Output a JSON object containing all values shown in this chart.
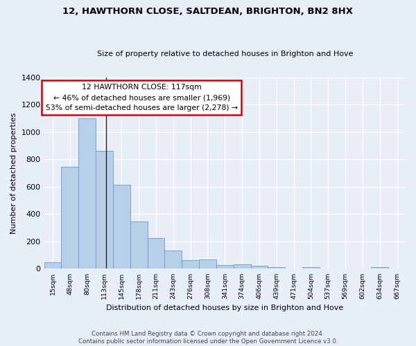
{
  "title": "12, HAWTHORN CLOSE, SALTDEAN, BRIGHTON, BN2 8HX",
  "subtitle": "Size of property relative to detached houses in Brighton and Hove",
  "xlabel": "Distribution of detached houses by size in Brighton and Hove",
  "ylabel": "Number of detached properties",
  "footer_line1": "Contains HM Land Registry data © Crown copyright and database right 2024.",
  "footer_line2": "Contains public sector information licensed under the Open Government Licence v3.0.",
  "bar_labels": [
    "15sqm",
    "48sqm",
    "80sqm",
    "113sqm",
    "145sqm",
    "178sqm",
    "211sqm",
    "243sqm",
    "276sqm",
    "308sqm",
    "341sqm",
    "374sqm",
    "406sqm",
    "439sqm",
    "471sqm",
    "504sqm",
    "537sqm",
    "569sqm",
    "602sqm",
    "634sqm",
    "667sqm"
  ],
  "bar_values": [
    48,
    748,
    1100,
    862,
    615,
    345,
    225,
    135,
    65,
    70,
    28,
    32,
    20,
    14,
    0,
    12,
    0,
    0,
    0,
    12,
    0
  ],
  "bar_color": "#b8cfe8",
  "bar_edge_color": "#6699cc",
  "annotation_text1": "12 HAWTHORN CLOSE: 117sqm",
  "annotation_text2": "← 46% of detached houses are smaller (1,969)",
  "annotation_text3": "53% of semi-detached houses are larger (2,278) →",
  "annotation_box_facecolor": "#ffffff",
  "annotation_border_color": "#cc0000",
  "ylim": [
    0,
    1400
  ],
  "yticks": [
    0,
    200,
    400,
    600,
    800,
    1000,
    1200,
    1400
  ],
  "background_color": "#e8eef8",
  "grid_color": "#ffffff",
  "figsize": [
    6.0,
    5.0
  ],
  "dpi": 100
}
